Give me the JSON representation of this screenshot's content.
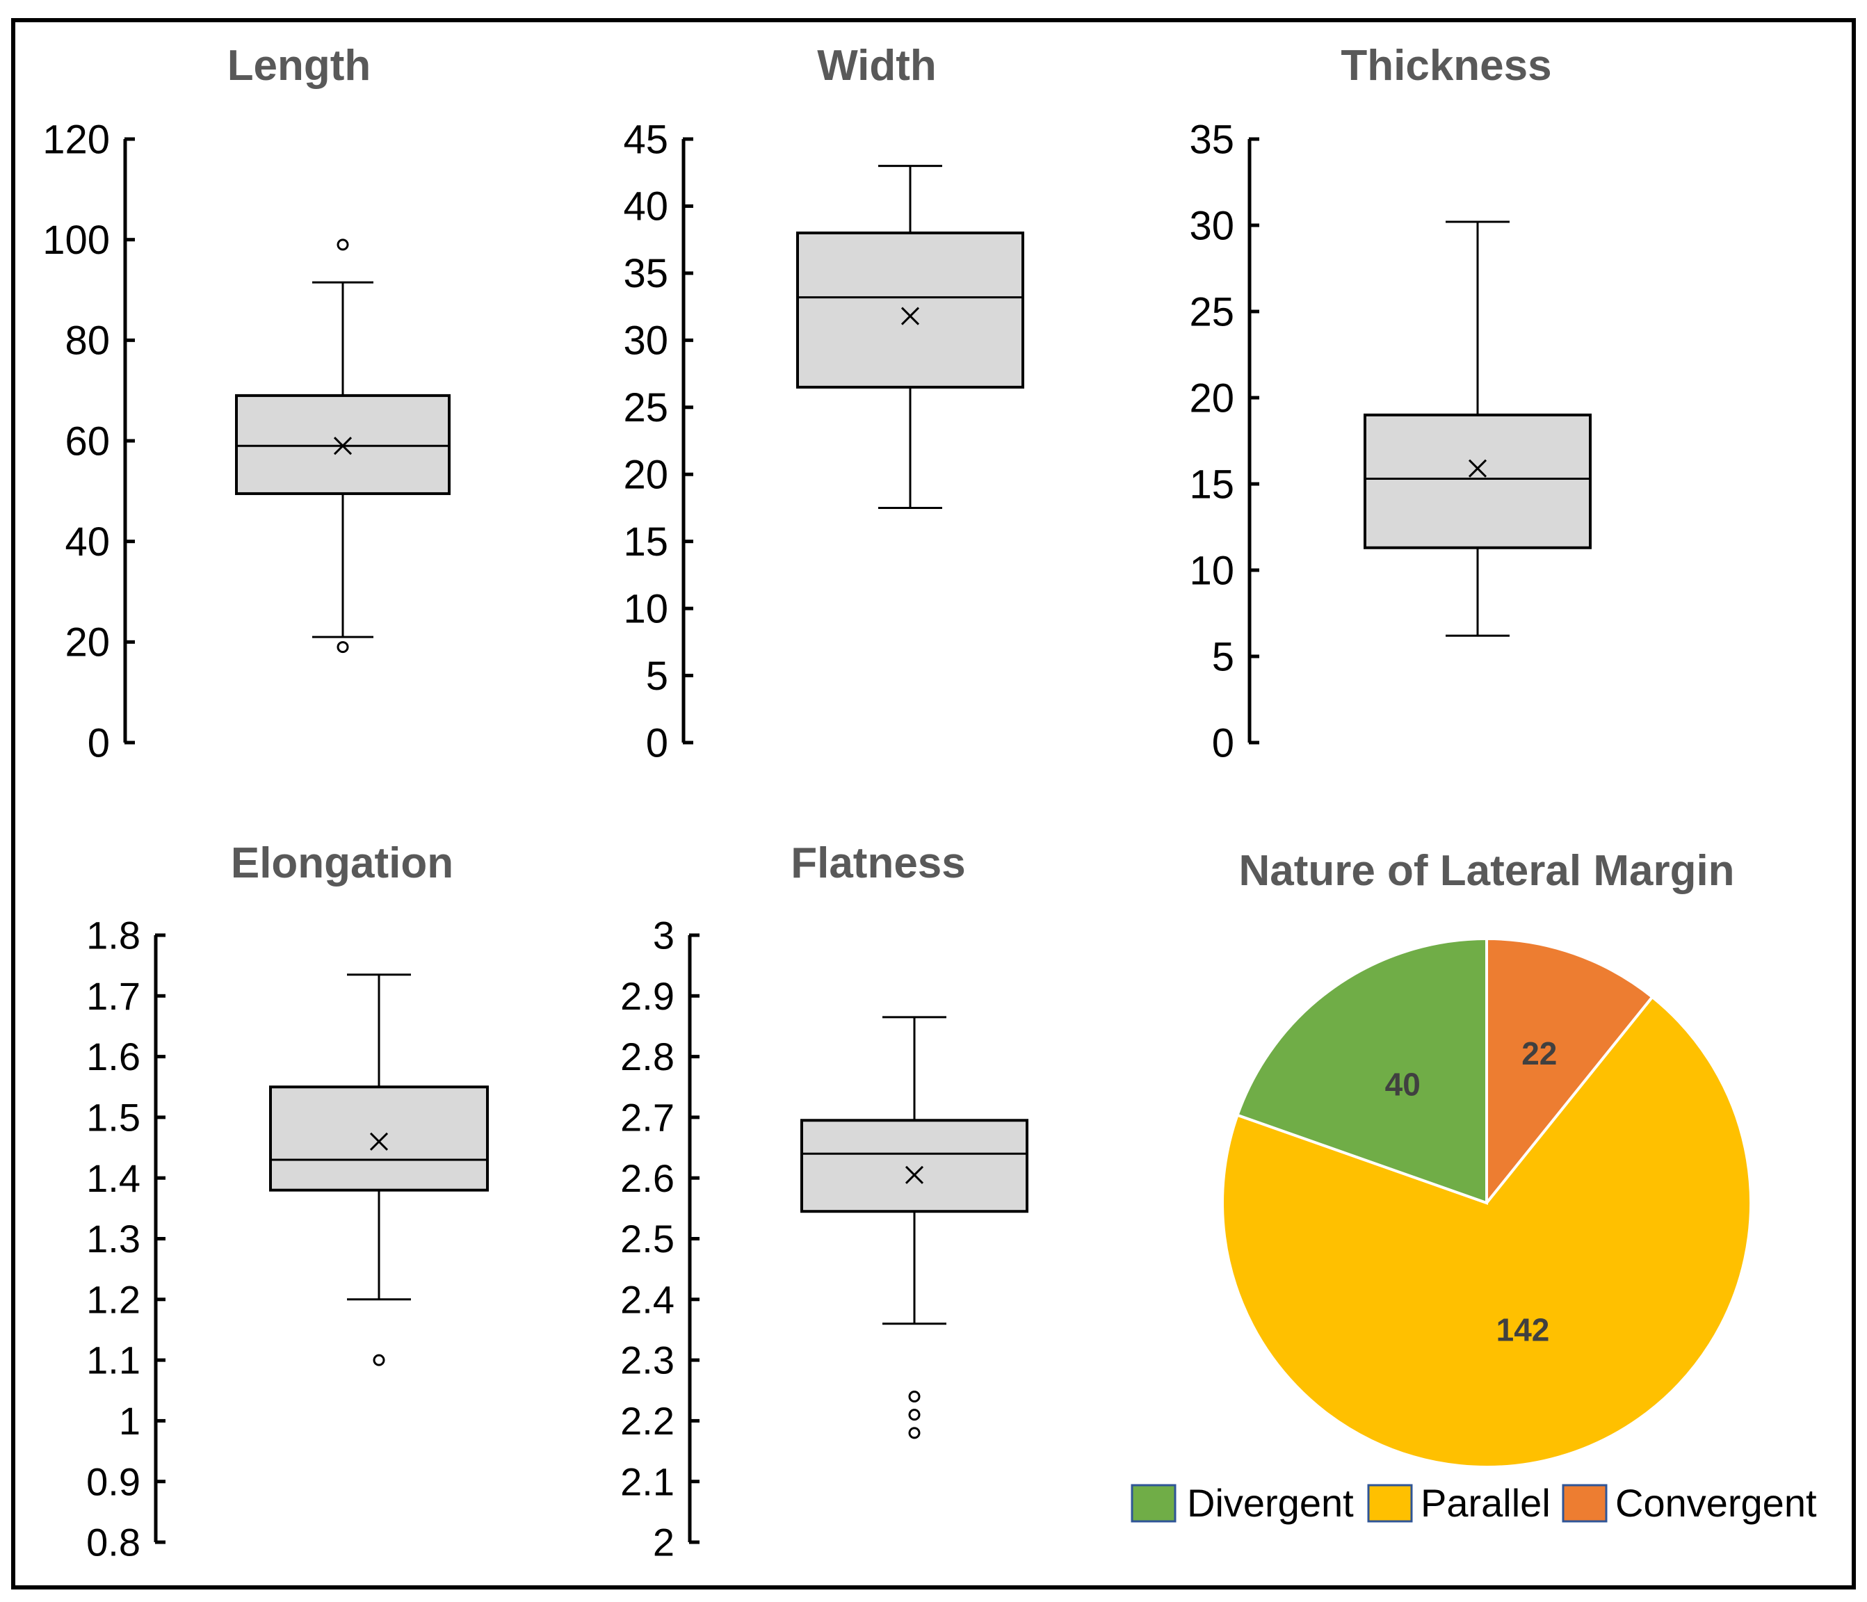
{
  "chart_data": [
    {
      "type": "box",
      "title": "Length",
      "ylim": [
        0,
        120
      ],
      "ticks": [
        "0",
        "20",
        "40",
        "60",
        "80",
        "100",
        "120"
      ],
      "tick_values": [
        0,
        20,
        40,
        60,
        80,
        100,
        120
      ],
      "box": {
        "whisker_low": 21,
        "q1": 49.5,
        "median": 59,
        "q3": 69,
        "whisker_high": 91.5,
        "mean": 59
      },
      "outliers": [
        99,
        19
      ]
    },
    {
      "type": "box",
      "title": "Width",
      "ylim": [
        0,
        45
      ],
      "ticks": [
        "0",
        "5",
        "10",
        "15",
        "20",
        "25",
        "30",
        "35",
        "40",
        "45"
      ],
      "tick_values": [
        0,
        5,
        10,
        15,
        20,
        25,
        30,
        35,
        40,
        45
      ],
      "box": {
        "whisker_low": 17.5,
        "q1": 26.5,
        "median": 33.2,
        "q3": 38,
        "whisker_high": 43,
        "mean": 31.8
      },
      "outliers": []
    },
    {
      "type": "box",
      "title": "Thickness",
      "ylim": [
        0,
        35
      ],
      "ticks": [
        "0",
        "5",
        "10",
        "15",
        "20",
        "25",
        "30",
        "35"
      ],
      "tick_values": [
        0,
        5,
        10,
        15,
        20,
        25,
        30,
        35
      ],
      "box": {
        "whisker_low": 6.2,
        "q1": 11.3,
        "median": 15.3,
        "q3": 19,
        "whisker_high": 30.2,
        "mean": 15.9
      },
      "outliers": []
    },
    {
      "type": "box",
      "title": "Elongation",
      "ylim": [
        0.8,
        1.8
      ],
      "ticks": [
        "0.8",
        "0.9",
        "1",
        "1.1",
        "1.2",
        "1.3",
        "1.4",
        "1.5",
        "1.6",
        "1.7",
        "1.8"
      ],
      "tick_values": [
        0.8,
        0.9,
        1.0,
        1.1,
        1.2,
        1.3,
        1.4,
        1.5,
        1.6,
        1.7,
        1.8
      ],
      "box": {
        "whisker_low": 1.2,
        "q1": 1.38,
        "median": 1.43,
        "q3": 1.55,
        "whisker_high": 1.735,
        "mean": 1.46
      },
      "outliers": [
        1.1
      ]
    },
    {
      "type": "box",
      "title": "Flatness",
      "ylim": [
        2,
        3
      ],
      "ticks": [
        "2",
        "2.1",
        "2.2",
        "2.3",
        "2.4",
        "2.5",
        "2.6",
        "2.7",
        "2.8",
        "2.9",
        "3"
      ],
      "tick_values": [
        2.0,
        2.1,
        2.2,
        2.3,
        2.4,
        2.5,
        2.6,
        2.7,
        2.8,
        2.9,
        3.0
      ],
      "box": {
        "whisker_low": 2.36,
        "q1": 2.545,
        "median": 2.64,
        "q3": 2.695,
        "whisker_high": 2.865,
        "mean": 2.605
      },
      "outliers": [
        2.24,
        2.21,
        2.18
      ]
    },
    {
      "type": "pie",
      "title": "Nature of Lateral Margin",
      "slices": [
        {
          "label": "Convergent",
          "value": 22,
          "display": "22",
          "color": "#ED7D31"
        },
        {
          "label": "Parallel",
          "value": 142,
          "display": "142",
          "color": "#FFC000"
        },
        {
          "label": "Divergent",
          "value": 40,
          "display": "40",
          "color": "#70AD47"
        }
      ],
      "legend": [
        {
          "label": "Divergent",
          "color": "#70AD47"
        },
        {
          "label": "Parallel",
          "color": "#FFC000"
        },
        {
          "label": "Convergent",
          "color": "#ED7D31"
        }
      ],
      "legend_position": "bottom"
    }
  ],
  "style": {
    "box_fill": "#D9D9D9",
    "stroke": "#000000",
    "title_color": "#595959",
    "legend_border": "#2F5597"
  }
}
